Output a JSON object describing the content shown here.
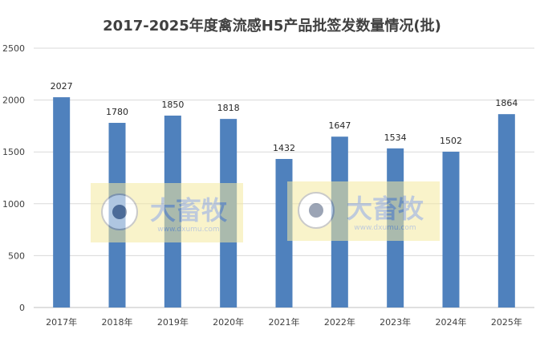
{
  "chart_data": {
    "type": "bar",
    "title": "2017-2025年度禽流感H5产品批签发数量情况(批)",
    "categories": [
      "2017年",
      "2018年",
      "2019年",
      "2020年",
      "2021年",
      "2022年",
      "2023年",
      "2024年",
      "2025年"
    ],
    "values": [
      2027,
      1780,
      1850,
      1818,
      1432,
      1647,
      1534,
      1502,
      1864
    ],
    "ylim": [
      0,
      2500
    ],
    "yticks": [
      0,
      500,
      1000,
      1500,
      2000,
      2500
    ],
    "grid": true,
    "bar_color": "#4F81BD",
    "watermark": {
      "brand": "大畜牧",
      "url": "www.dxumu.com"
    }
  }
}
